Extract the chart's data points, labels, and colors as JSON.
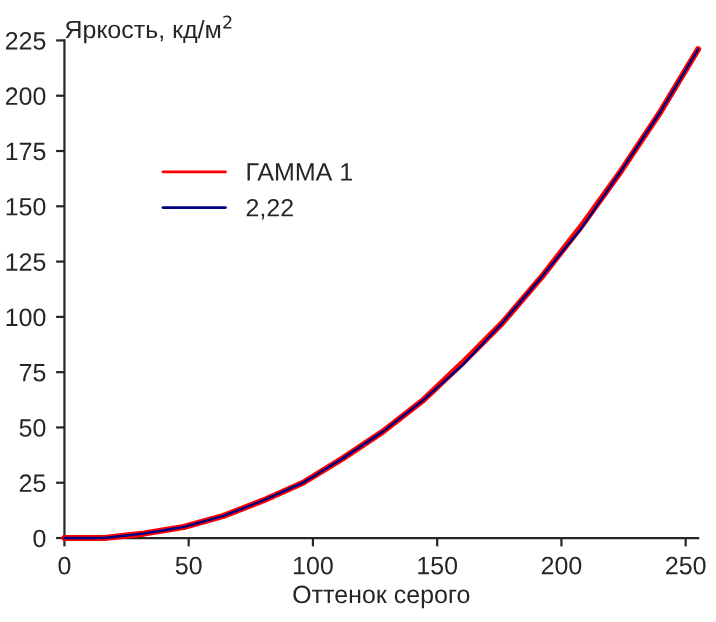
{
  "chart_data": {
    "type": "line",
    "ylabel": "Яркость, кд/м$^{2}$",
    "xlabel": "Оттенок серого",
    "x": [
      0,
      16,
      32,
      48,
      64,
      80,
      96,
      112,
      128,
      144,
      160,
      176,
      192,
      208,
      224,
      240,
      255
    ],
    "series": [
      {
        "name": "ГАММА 1",
        "color": "#ff0000",
        "values": [
          0,
          0,
          2,
          5,
          10,
          17,
          25,
          36,
          48,
          62,
          79,
          97,
          118,
          141,
          166,
          193,
          221
        ]
      },
      {
        "name": "2,22",
        "color": "#000080",
        "values": [
          0,
          0,
          2,
          5,
          10,
          17,
          25,
          36,
          48,
          62,
          78,
          97,
          118,
          140,
          166,
          193,
          221
        ]
      }
    ],
    "xlim": [
      0,
      255
    ],
    "ylim": [
      0,
      225
    ],
    "xticks": [
      0,
      50,
      100,
      150,
      200,
      250
    ],
    "yticks": [
      0,
      25,
      50,
      75,
      100,
      125,
      150,
      175,
      200,
      225
    ],
    "legend": "top left",
    "grid": false,
    "marker": "none",
    "line_style": "solid"
  }
}
